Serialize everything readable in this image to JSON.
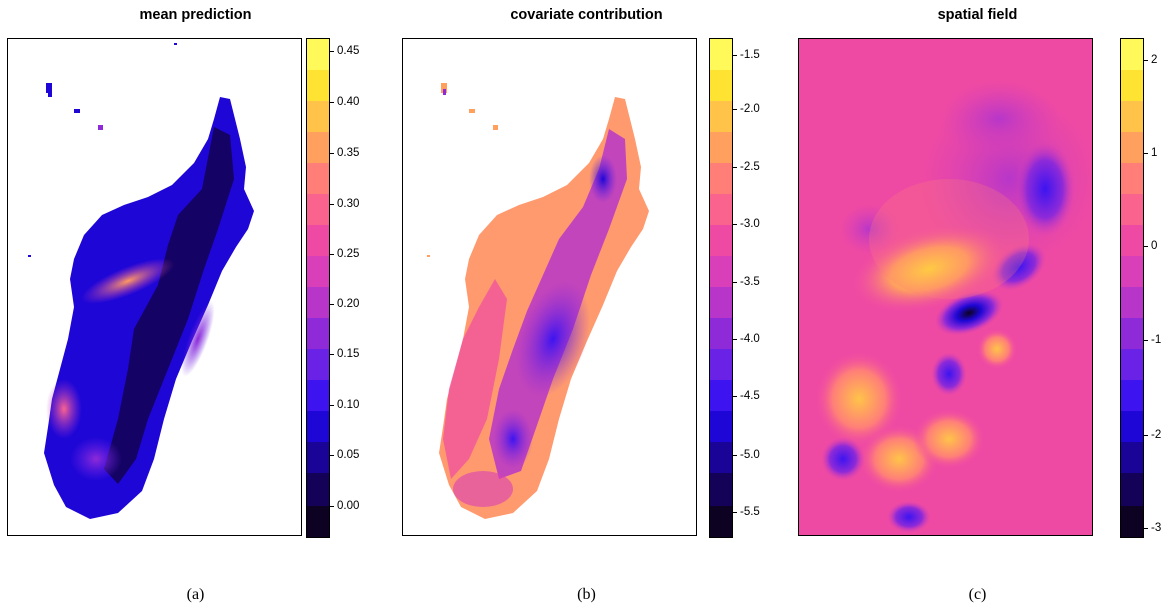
{
  "colorscale": [
    "#0d0221",
    "#130258",
    "#1a0397",
    "#1e06d6",
    "#3d14f0",
    "#6a22e6",
    "#8e2ad8",
    "#b736c9",
    "#d83fb8",
    "#ef4aa3",
    "#fb638f",
    "#ff7f78",
    "#ffa05f",
    "#ffc349",
    "#ffe332",
    "#fff959"
  ],
  "panels": [
    {
      "title": "mean prediction",
      "caption": "(a)",
      "ticks": [
        "0.45",
        "0.40",
        "0.35",
        "0.30",
        "0.25",
        "0.20",
        "0.15",
        "0.10",
        "0.05",
        "0.00"
      ]
    },
    {
      "title": "covariate contribution",
      "caption": "(b)",
      "ticks": [
        "-1.5",
        "-2.0",
        "-2.5",
        "-3.0",
        "-3.5",
        "-4.0",
        "-4.5",
        "-5.0",
        "-5.5"
      ]
    },
    {
      "title": "spatial field",
      "caption": "(c)",
      "ticks": [
        "2",
        "1",
        "0",
        "-1",
        "-2",
        "-3"
      ]
    }
  ]
}
